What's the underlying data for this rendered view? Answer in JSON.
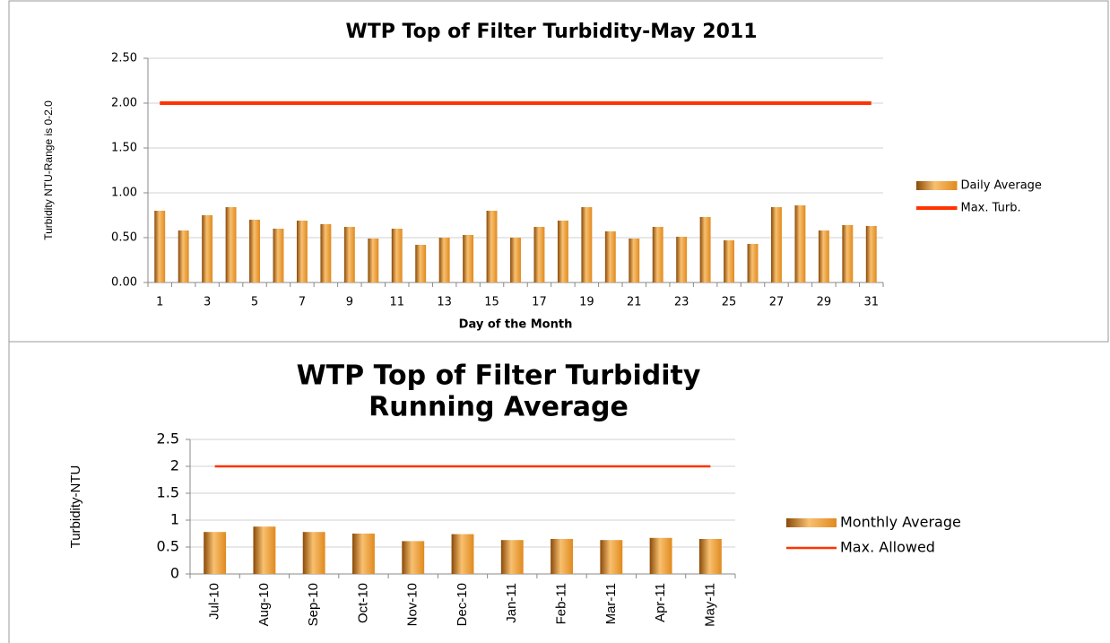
{
  "chart_data": [
    {
      "type": "bar",
      "title": "WTP Top of Filter Turbidity-May 2011",
      "x_label": "Day of the Month",
      "y_label": "Turbidity NTU-Range is 0-2.0",
      "categories": [
        1,
        null,
        3,
        null,
        5,
        null,
        7,
        null,
        9,
        null,
        11,
        null,
        13,
        null,
        15,
        null,
        17,
        null,
        19,
        null,
        21,
        null,
        23,
        null,
        25,
        null,
        27,
        null,
        29,
        null,
        31
      ],
      "series": [
        {
          "name": "Daily Average",
          "type": "bar",
          "color": "#e08a1e",
          "values": [
            0.8,
            0.58,
            0.75,
            0.84,
            0.7,
            0.6,
            0.69,
            0.65,
            0.62,
            0.49,
            0.6,
            0.42,
            0.5,
            0.53,
            0.8,
            0.5,
            0.62,
            0.69,
            0.84,
            0.57,
            0.49,
            0.62,
            0.51,
            0.73,
            0.47,
            0.43,
            0.84,
            0.86,
            0.58,
            0.64,
            0.63
          ]
        },
        {
          "name": "Max. Turb.",
          "type": "line",
          "color": "#ff3300",
          "values": [
            2.0,
            2.0,
            2.0,
            2.0,
            2.0,
            2.0,
            2.0,
            2.0,
            2.0,
            2.0,
            2.0,
            2.0,
            2.0,
            2.0,
            2.0,
            2.0,
            2.0,
            2.0,
            2.0,
            2.0,
            2.0,
            2.0,
            2.0,
            2.0,
            2.0,
            2.0,
            2.0,
            2.0,
            2.0,
            2.0,
            2.0
          ]
        }
      ],
      "ylim": [
        0,
        2.5
      ],
      "yticks": [
        {
          "value": 0,
          "label": "0.00"
        },
        {
          "value": 0.5,
          "label": "0.50"
        },
        {
          "value": 1,
          "label": "1.00"
        },
        {
          "value": 1.5,
          "label": "1.50"
        },
        {
          "value": 2,
          "label": "2.00"
        },
        {
          "value": 2.5,
          "label": "2.50"
        }
      ],
      "grid": true,
      "legend": "right"
    },
    {
      "type": "bar",
      "title": [
        "WTP Top of Filter Turbidity",
        "Running Average"
      ],
      "y_label": "Turbidity-NTU",
      "categories": [
        "Jul-10",
        "Aug-10",
        "Sep-10",
        "Oct-10",
        "Nov-10",
        "Dec-10",
        "Jan-11",
        "Feb-11",
        "Mar-11",
        "Apr-11",
        "May-11"
      ],
      "series": [
        {
          "name": "Monthly Average",
          "type": "bar",
          "color": "#e08a1e",
          "values": [
            0.78,
            0.88,
            0.78,
            0.75,
            0.61,
            0.74,
            0.63,
            0.65,
            0.63,
            0.67,
            0.65
          ]
        },
        {
          "name": "Max. Allowed",
          "type": "line",
          "color": "#ff3300",
          "values": [
            2,
            2,
            2,
            2,
            2,
            2,
            2,
            2,
            2,
            2,
            2
          ]
        }
      ],
      "ylim": [
        0,
        2.5
      ],
      "yticks": [
        0,
        0.5,
        1,
        1.5,
        2,
        2.5
      ],
      "grid": true,
      "legend": "right"
    }
  ]
}
